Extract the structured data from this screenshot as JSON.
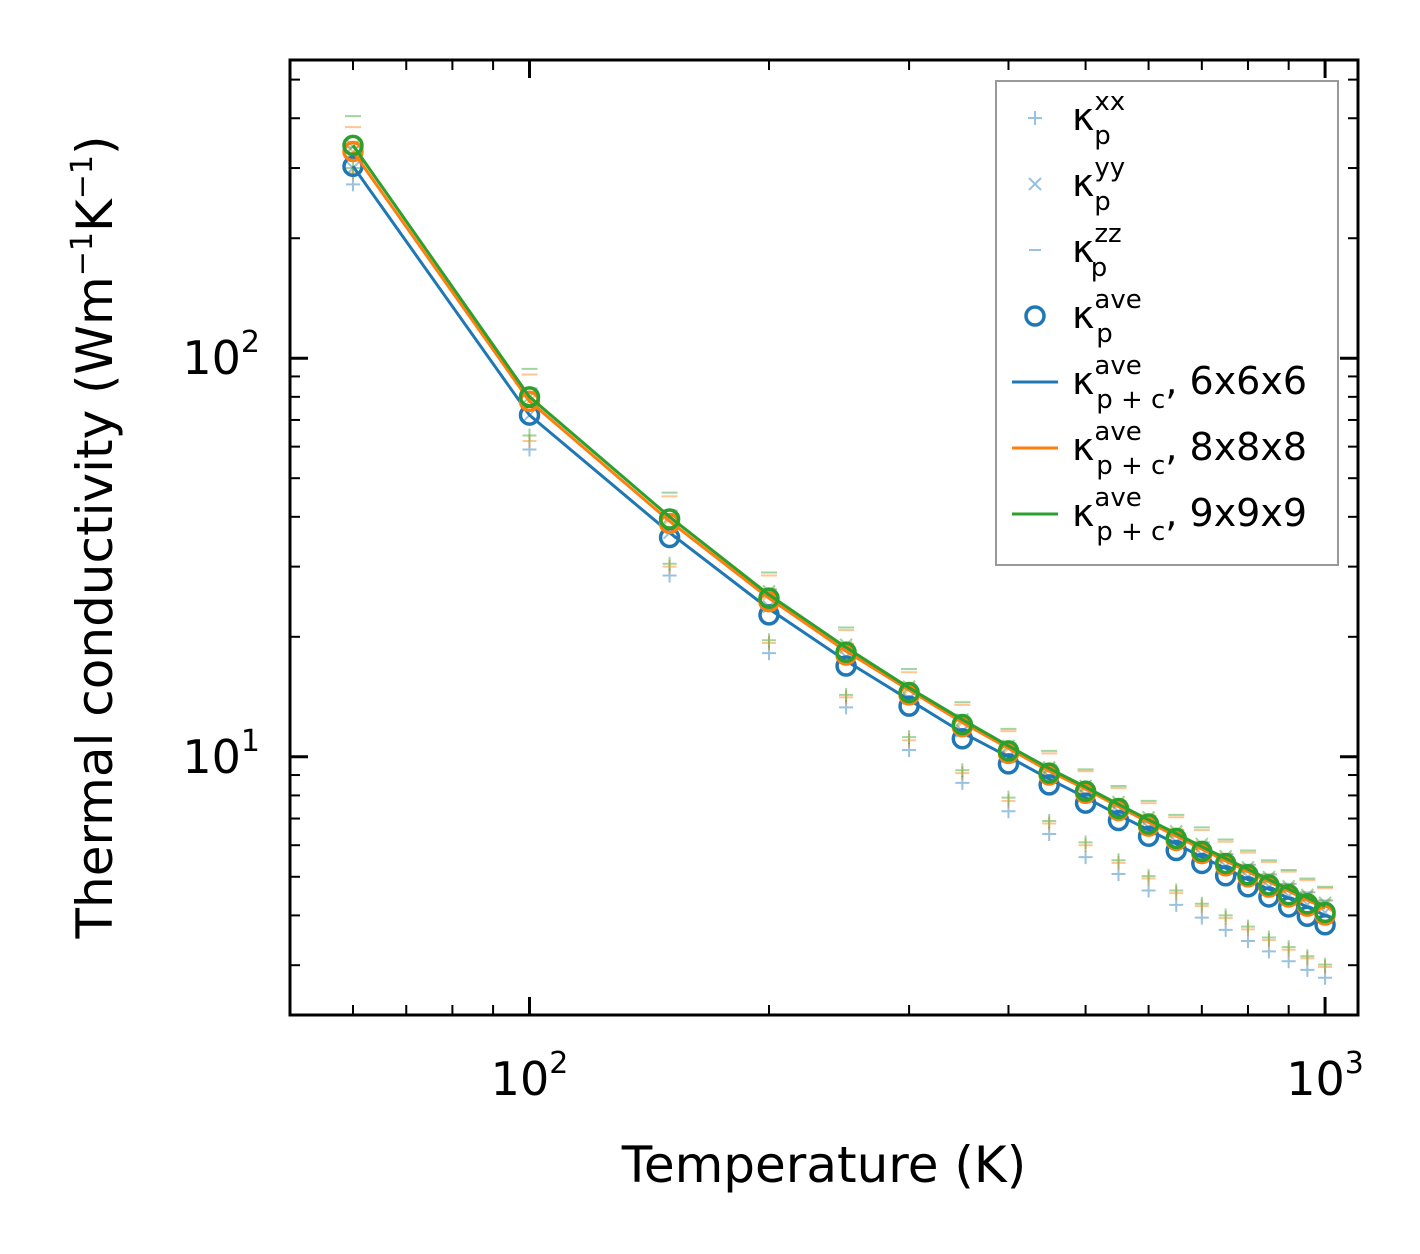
{
  "chart_data": {
    "type": "line",
    "xscale": "log",
    "yscale": "log",
    "xlim": [
      50,
      1100
    ],
    "ylim": [
      2.25,
      560
    ],
    "xlabel": "Temperature (K)",
    "ylabel": {
      "prefix": "Thermal conductivity (Wm",
      "exp1": "−1",
      "mid": "K",
      "exp2": "−1",
      "suffix": ")"
    },
    "xticks": [
      {
        "value": 100,
        "base": "10",
        "exp": "2"
      },
      {
        "value": 1000,
        "base": "10",
        "exp": "3"
      }
    ],
    "yticks": [
      {
        "value": 10,
        "base": "10",
        "exp": "1"
      },
      {
        "value": 100,
        "base": "10",
        "exp": "2"
      }
    ],
    "x": [
      60,
      100,
      150,
      200,
      250,
      300,
      350,
      400,
      450,
      500,
      550,
      600,
      650,
      700,
      750,
      800,
      850,
      900,
      950,
      1000
    ],
    "colors": {
      "blue": "#1f77b4",
      "orange": "#ff7f0e",
      "green": "#2ca02c"
    },
    "series": [
      {
        "name": "6x6x6",
        "color": "#1f77b4",
        "kxx": [
          273,
          59,
          28.5,
          18.2,
          13.3,
          10.4,
          8.6,
          7.3,
          6.4,
          5.6,
          5.08,
          4.62,
          4.25,
          3.95,
          3.68,
          3.45,
          3.25,
          3.07,
          2.92,
          2.79
        ],
        "kyy": [
          300,
          72,
          36.5,
          23.8,
          17.8,
          14.0,
          11.6,
          10.0,
          8.9,
          8.0,
          7.28,
          6.65,
          6.12,
          5.68,
          5.32,
          5.0,
          4.72,
          4.47,
          4.26,
          4.07
        ],
        "kzz": [
          338,
          84,
          41.5,
          26.3,
          19.2,
          15.1,
          12.5,
          10.8,
          9.5,
          8.5,
          7.75,
          7.1,
          6.55,
          6.1,
          5.7,
          5.36,
          5.07,
          4.8,
          4.57,
          4.36
        ],
        "kave": [
          303,
          72,
          35.5,
          22.7,
          16.9,
          13.4,
          11.1,
          9.6,
          8.5,
          7.65,
          6.92,
          6.32,
          5.82,
          5.4,
          5.03,
          4.72,
          4.45,
          4.2,
          3.98,
          3.79
        ],
        "line": [
          303,
          72,
          36.5,
          23.5,
          17.4,
          13.9,
          11.5,
          10.0,
          8.8,
          7.9,
          7.15,
          6.55,
          6.05,
          5.6,
          5.25,
          4.92,
          4.65,
          4.42,
          4.2,
          4.0
        ]
      },
      {
        "name": "8x8x8",
        "color": "#ff7f0e",
        "kxx": [
          292,
          62,
          30.0,
          19.3,
          14.1,
          11.0,
          9.1,
          7.75,
          6.8,
          6.0,
          5.42,
          4.95,
          4.55,
          4.22,
          3.94,
          3.69,
          3.47,
          3.28,
          3.12,
          2.97
        ],
        "kyy": [
          330,
          78,
          39.5,
          25.6,
          18.8,
          14.8,
          12.2,
          10.5,
          9.3,
          8.35,
          7.6,
          6.95,
          6.4,
          5.95,
          5.55,
          5.2,
          4.92,
          4.66,
          4.44,
          4.24
        ],
        "kzz": [
          380,
          91,
          45.0,
          28.5,
          20.8,
          16.3,
          13.5,
          11.6,
          10.2,
          9.2,
          8.35,
          7.65,
          7.05,
          6.55,
          6.12,
          5.75,
          5.44,
          5.15,
          4.9,
          4.68
        ],
        "kave": [
          330,
          78,
          38.5,
          24.5,
          18.0,
          14.3,
          11.9,
          10.2,
          9.0,
          8.1,
          7.33,
          6.7,
          6.17,
          5.72,
          5.33,
          5.0,
          4.71,
          4.45,
          4.22,
          4.01
        ],
        "line": [
          330,
          78,
          39.0,
          25.0,
          18.4,
          14.7,
          12.2,
          10.5,
          9.2,
          8.3,
          7.5,
          6.85,
          6.32,
          5.87,
          5.48,
          5.15,
          4.86,
          4.6,
          4.37,
          4.17
        ]
      },
      {
        "name": "9x9x9",
        "color": "#2ca02c",
        "kxx": [
          300,
          64,
          30.5,
          19.6,
          14.3,
          11.2,
          9.25,
          7.9,
          6.9,
          6.1,
          5.5,
          5.02,
          4.62,
          4.28,
          4.0,
          3.75,
          3.52,
          3.33,
          3.16,
          3.01
        ],
        "kyy": [
          340,
          80,
          40.0,
          26.0,
          19.1,
          15.0,
          12.4,
          10.65,
          9.4,
          8.45,
          7.7,
          7.05,
          6.5,
          6.04,
          5.63,
          5.28,
          4.99,
          4.73,
          4.5,
          4.3
        ],
        "kzz": [
          405,
          94,
          46.0,
          29.0,
          21.1,
          16.6,
          13.7,
          11.75,
          10.35,
          9.3,
          8.45,
          7.75,
          7.15,
          6.65,
          6.2,
          5.82,
          5.5,
          5.2,
          4.95,
          4.72
        ],
        "kave": [
          342,
          80,
          39.5,
          25.0,
          18.3,
          14.5,
          12.05,
          10.35,
          9.1,
          8.2,
          7.42,
          6.78,
          6.24,
          5.79,
          5.4,
          5.06,
          4.77,
          4.51,
          4.28,
          4.07
        ],
        "line": [
          342,
          80,
          40.0,
          25.5,
          18.8,
          14.9,
          12.4,
          10.65,
          9.35,
          8.4,
          7.6,
          6.95,
          6.42,
          5.95,
          5.56,
          5.22,
          4.92,
          4.66,
          4.43,
          4.22
        ]
      }
    ],
    "legend": {
      "position": "top-right",
      "entries": [
        {
          "marker": "plus",
          "color": "#1f77b4",
          "alpha": 0.45,
          "symbol": "κ",
          "sub": "p",
          "sup": "xx",
          "suffix": ""
        },
        {
          "marker": "x",
          "color": "#1f77b4",
          "alpha": 0.45,
          "symbol": "κ",
          "sub": "p",
          "sup": "yy",
          "suffix": ""
        },
        {
          "marker": "dash",
          "color": "#1f77b4",
          "alpha": 0.45,
          "symbol": "κ",
          "sub": "p",
          "sup": "zz",
          "suffix": ""
        },
        {
          "marker": "circle",
          "color": "#1f77b4",
          "alpha": 1,
          "symbol": "κ",
          "sub": "p",
          "sup": "ave",
          "suffix": ""
        },
        {
          "marker": "line",
          "color": "#1f77b4",
          "alpha": 1,
          "symbol": "κ",
          "sub": "p + c",
          "sup": "ave",
          "suffix": ", 6x6x6"
        },
        {
          "marker": "line",
          "color": "#ff7f0e",
          "alpha": 1,
          "symbol": "κ",
          "sub": "p + c",
          "sup": "ave",
          "suffix": ", 8x8x8"
        },
        {
          "marker": "line",
          "color": "#2ca02c",
          "alpha": 1,
          "symbol": "κ",
          "sub": "p + c",
          "sup": "ave",
          "suffix": ", 9x9x9"
        }
      ]
    }
  }
}
